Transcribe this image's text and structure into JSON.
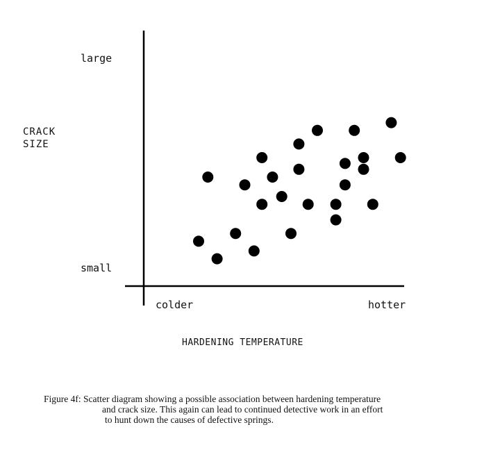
{
  "chart_data": {
    "type": "scatter",
    "title": "",
    "xlabel": "HARDENING TEMPERATURE",
    "ylabel_lines": [
      "CRACK",
      "SIZE"
    ],
    "x_tick_labels": [
      "colder",
      "hotter"
    ],
    "y_tick_labels": [
      "small",
      "large"
    ],
    "xlim": [
      0,
      10
    ],
    "ylim": [
      0,
      10
    ],
    "grid": false,
    "points": [
      {
        "x": 2.0,
        "y": 1.7
      },
      {
        "x": 2.7,
        "y": 0.8
      },
      {
        "x": 2.35,
        "y": 5.0
      },
      {
        "x": 3.4,
        "y": 2.1
      },
      {
        "x": 3.75,
        "y": 4.6
      },
      {
        "x": 4.1,
        "y": 1.2
      },
      {
        "x": 4.4,
        "y": 3.6
      },
      {
        "x": 4.4,
        "y": 6.0
      },
      {
        "x": 4.8,
        "y": 5.0
      },
      {
        "x": 5.15,
        "y": 4.0
      },
      {
        "x": 5.5,
        "y": 2.1
      },
      {
        "x": 5.8,
        "y": 5.4
      },
      {
        "x": 5.8,
        "y": 6.7
      },
      {
        "x": 6.15,
        "y": 3.6
      },
      {
        "x": 6.5,
        "y": 7.4
      },
      {
        "x": 7.2,
        "y": 2.8
      },
      {
        "x": 7.2,
        "y": 3.6
      },
      {
        "x": 7.55,
        "y": 4.6
      },
      {
        "x": 7.55,
        "y": 5.7
      },
      {
        "x": 7.9,
        "y": 7.4
      },
      {
        "x": 8.25,
        "y": 5.4
      },
      {
        "x": 8.25,
        "y": 6.0
      },
      {
        "x": 8.6,
        "y": 3.6
      },
      {
        "x": 9.3,
        "y": 7.8
      },
      {
        "x": 9.65,
        "y": 6.0
      }
    ]
  },
  "caption": {
    "line1": "Figure 4f:  Scatter diagram showing a possible association between hardening temperature",
    "line2": "and crack size.  This again can lead to continued detective work in an effort",
    "line3": "to hunt down the causes of defective springs."
  }
}
